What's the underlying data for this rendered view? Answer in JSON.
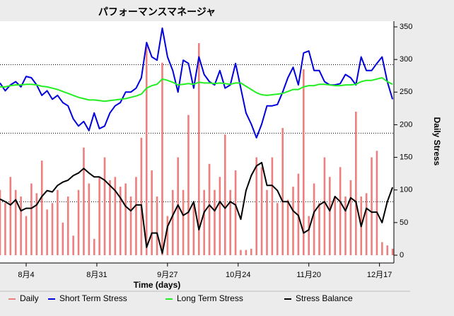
{
  "chart_data": {
    "type": "line",
    "title": "パフォーマンスマネージャ",
    "x_label": "Time (days)",
    "y_label": "Daily Stress",
    "xlim": [
      -10,
      140.5
    ],
    "xticks": [
      {
        "value": 0,
        "label": "8月4"
      },
      {
        "value": 27,
        "label": "8月31"
      },
      {
        "value": 54,
        "label": "9月27"
      },
      {
        "value": 81,
        "label": "10月24"
      },
      {
        "value": 108,
        "label": "11月20"
      },
      {
        "value": 135,
        "label": "12月17"
      }
    ],
    "ylim": [
      0,
      350
    ],
    "yticks": [
      0,
      50,
      100,
      150,
      200,
      250,
      300,
      350
    ],
    "reference_lines": [
      292,
      187,
      82
    ],
    "x": [
      -10,
      -8,
      -6,
      -4,
      -2,
      0,
      2,
      4,
      6,
      8,
      10,
      12,
      14,
      16,
      18,
      20,
      22,
      24,
      26,
      28,
      30,
      32,
      34,
      36,
      38,
      40,
      42,
      44,
      46,
      48,
      50,
      52,
      54,
      56,
      58,
      60,
      62,
      64,
      66,
      68,
      70,
      72,
      74,
      76,
      78,
      80,
      82,
      84,
      86,
      88,
      90,
      92,
      94,
      96,
      98,
      100,
      102,
      104,
      106,
      108,
      110,
      112,
      114,
      116,
      118,
      120,
      122,
      124,
      126,
      128,
      130,
      132,
      134,
      136,
      138,
      140
    ],
    "series": [
      {
        "name": "Daily",
        "color": "#ee7f7f",
        "kind": "bar",
        "values": [
          100,
          80,
          120,
          100,
          90,
          60,
          110,
          95,
          145,
          70,
          80,
          100,
          50,
          90,
          30,
          100,
          165,
          110,
          25,
          120,
          150,
          115,
          120,
          105,
          110,
          90,
          120,
          180,
          320,
          130,
          90,
          295,
          60,
          100,
          150,
          100,
          215,
          80,
          325,
          100,
          140,
          100,
          120,
          185,
          100,
          130,
          8,
          8,
          10,
          150,
          135,
          100,
          150,
          80,
          195,
          85,
          105,
          125,
          285,
          60,
          110,
          80,
          150,
          120,
          90,
          135,
          90,
          115,
          220,
          90,
          95,
          150,
          160,
          20,
          15,
          10
        ]
      },
      {
        "name": "Short Term Stress",
        "color": "#0000dd",
        "kind": "line",
        "values": [
          264,
          252,
          261,
          266,
          258,
          274,
          272,
          261,
          245,
          252,
          239,
          245,
          234,
          229,
          209,
          198,
          205,
          191,
          218,
          194,
          198,
          218,
          229,
          234,
          250,
          250,
          256,
          272,
          326,
          304,
          299,
          348,
          304,
          283,
          250,
          299,
          294,
          256,
          304,
          277,
          266,
          261,
          283,
          256,
          261,
          294,
          256,
          218,
          201,
          180,
          201,
          229,
          229,
          231,
          250,
          272,
          288,
          261,
          310,
          313,
          283,
          283,
          266,
          261,
          261,
          263,
          277,
          272,
          261,
          304,
          283,
          283,
          294,
          304,
          266,
          239
        ]
      },
      {
        "name": "Long Term Stress",
        "color": "#22ee22",
        "kind": "line",
        "values": [
          258,
          258,
          260,
          261,
          261,
          262,
          262,
          261,
          259,
          258,
          256,
          254,
          251,
          248,
          245,
          242,
          240,
          238,
          238,
          237,
          236,
          237,
          238,
          239,
          240,
          242,
          244,
          247,
          256,
          260,
          262,
          270,
          268,
          265,
          261,
          262,
          263,
          262,
          265,
          264,
          264,
          263,
          264,
          263,
          262,
          264,
          264,
          259,
          254,
          249,
          246,
          245,
          246,
          247,
          248,
          251,
          254,
          254,
          258,
          260,
          260,
          262,
          262,
          261,
          260,
          260,
          261,
          261,
          262,
          266,
          268,
          268,
          270,
          272,
          266,
          262
        ]
      },
      {
        "name": "Stress Balance",
        "color": "#000000",
        "kind": "line",
        "values": [
          86,
          82,
          77,
          85,
          68,
          72,
          72,
          77,
          90,
          99,
          97,
          107,
          112,
          115,
          122,
          126,
          133,
          126,
          120,
          120,
          115,
          107,
          99,
          88,
          75,
          68,
          77,
          77,
          12,
          34,
          34,
          3,
          44,
          61,
          77,
          61,
          66,
          82,
          39,
          66,
          77,
          68,
          82,
          72,
          82,
          77,
          55,
          99,
          122,
          137,
          142,
          107,
          107,
          99,
          82,
          82,
          68,
          61,
          34,
          39,
          66,
          77,
          82,
          68,
          90,
          82,
          68,
          88,
          82,
          44,
          72,
          66,
          66,
          50,
          82,
          104
        ]
      }
    ]
  }
}
